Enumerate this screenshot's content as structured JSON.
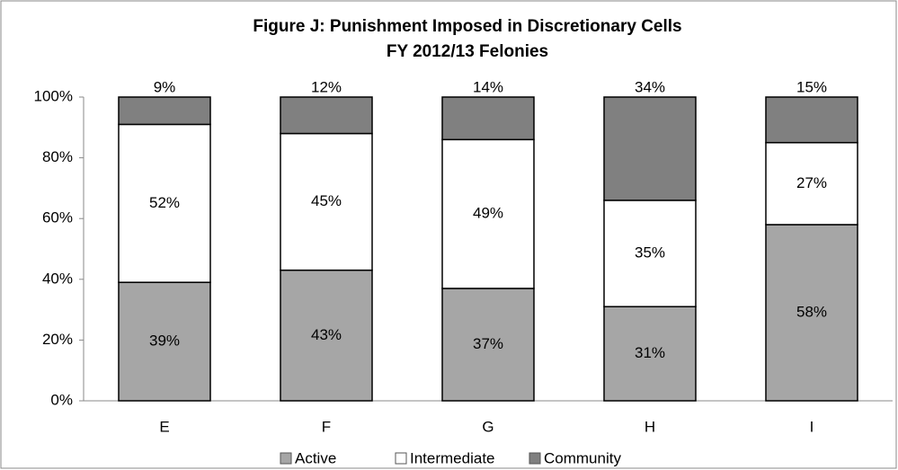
{
  "chart_data": {
    "type": "stacked_bar",
    "title": "Figure J: Punishment Imposed in Discretionary Cells",
    "subtitle": "FY 2012/13 Felonies",
    "categories": [
      "E",
      "F",
      "G",
      "H",
      "I"
    ],
    "series": [
      {
        "name": "Active",
        "color": "#a6a6a6",
        "values": [
          39,
          43,
          37,
          31,
          58
        ],
        "value_labels": [
          "39%",
          "43%",
          "37%",
          "31%",
          "58%"
        ]
      },
      {
        "name": "Intermediate",
        "color": "#ffffff",
        "values": [
          52,
          45,
          49,
          35,
          27
        ],
        "value_labels": [
          "52%",
          "45%",
          "49%",
          "35%",
          "27%"
        ]
      },
      {
        "name": "Community",
        "color": "#808080",
        "values": [
          9,
          12,
          14,
          34,
          15
        ],
        "value_labels": [
          "9%",
          "12%",
          "14%",
          "34%",
          "15%"
        ]
      }
    ],
    "ylim": [
      0,
      100
    ],
    "yticks": [
      {
        "value": 0,
        "label": "0%"
      },
      {
        "value": 20,
        "label": "20%"
      },
      {
        "value": 40,
        "label": "40%"
      },
      {
        "value": 60,
        "label": "60%"
      },
      {
        "value": 80,
        "label": "80%"
      },
      {
        "value": 100,
        "label": "100%"
      }
    ],
    "grid": false,
    "legend": "bottom"
  }
}
